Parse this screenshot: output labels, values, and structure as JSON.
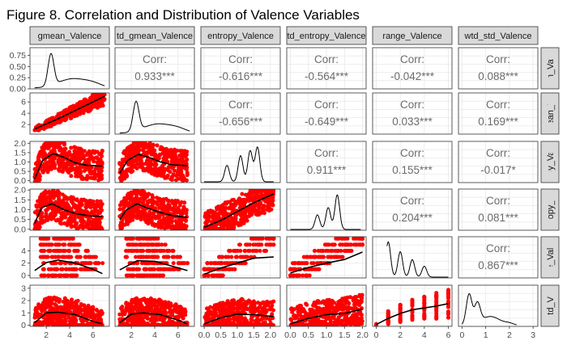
{
  "figure": {
    "title": "Figure 8. Correlation and Distribution of Valence Variables"
  },
  "chart_data": {
    "type": "scatter",
    "subtype": "pairs-matrix",
    "variables": [
      "gmean_Valence",
      "wtd_gmean_Valence",
      "entropy_Valence",
      "wtd_entropy_Valence",
      "range_Valence",
      "wtd_std_Valence"
    ],
    "column_strip_labels": [
      "gmean_Valence",
      "td_gmean_Valence",
      "entropy_Valence",
      "td_entropy_Valence",
      "range_Valence",
      "wtd_std_Valence"
    ],
    "row_strip_labels": [
      "an_Vale",
      "mean_Va",
      "opy_Vale",
      "ntropy_Va",
      "ge_Valer",
      "std_Va"
    ],
    "x_ticks": [
      [
        "2",
        "4",
        "6"
      ],
      [
        "2",
        "4",
        "6"
      ],
      [
        "0.0",
        "0.5",
        "1.0",
        "1.5",
        "2.0"
      ],
      [
        "0.0",
        "0.5",
        "1.0",
        "1.5",
        "2.0"
      ],
      [
        "0",
        "2",
        "4",
        "6"
      ],
      [
        "0",
        "1",
        "2",
        "3"
      ]
    ],
    "y_ticks": [
      [
        "0.00",
        "0.25",
        "0.50",
        "0.75"
      ],
      [
        "2",
        "4",
        "6"
      ],
      [
        "0.0",
        "0.5",
        "1.0",
        "1.5",
        "2.0"
      ],
      [
        "0.0",
        "0.5",
        "1.0",
        "1.5",
        "2.0"
      ],
      [
        "0",
        "2",
        "4"
      ],
      [
        "0",
        "1",
        "2",
        "3"
      ]
    ],
    "x_ranges": [
      [
        0.6,
        7.4
      ],
      [
        0.6,
        7.4
      ],
      [
        -0.1,
        2.3
      ],
      [
        -0.1,
        2.1
      ],
      [
        -0.3,
        6.3
      ],
      [
        -0.15,
        3.2
      ]
    ],
    "y_ranges": [
      [
        0,
        0.92
      ],
      [
        0.3,
        7.6
      ],
      [
        -0.1,
        2.1
      ],
      [
        -0.05,
        2.05
      ],
      [
        -0.4,
        6.3
      ],
      [
        -0.1,
        3.25
      ]
    ],
    "diagonal_density_peaks": [
      {
        "variable": "gmean_Valence",
        "peaks": [
          {
            "x": 2.4,
            "density": 0.87
          }
        ]
      },
      {
        "variable": "wtd_gmean_Valence",
        "peaks": [
          {
            "x": 2.4,
            "density": 0.8
          }
        ]
      },
      {
        "variable": "entropy_Valence",
        "peaks": [
          {
            "x": 0.69,
            "density": 0.45
          },
          {
            "x": 1.1,
            "density": 0.72
          },
          {
            "x": 1.39,
            "density": 0.85
          },
          {
            "x": 1.61,
            "density": 0.95
          }
        ]
      },
      {
        "variable": "wtd_entropy_Valence",
        "peaks": [
          {
            "x": 0.75,
            "density": 0.4
          },
          {
            "x": 1.05,
            "density": 0.6
          },
          {
            "x": 1.3,
            "density": 0.95
          }
        ]
      },
      {
        "variable": "range_Valence",
        "peaks": [
          {
            "x": 1,
            "density": 0.97
          },
          {
            "x": 2,
            "density": 0.7
          },
          {
            "x": 3,
            "density": 0.48
          },
          {
            "x": 4,
            "density": 0.3
          }
        ]
      },
      {
        "variable": "wtd_std_Valence",
        "peaks": [
          {
            "x": 0.3,
            "density": 0.85
          },
          {
            "x": 0.65,
            "density": 0.55
          }
        ]
      }
    ],
    "correlations": [
      {
        "row": 1,
        "col": 2,
        "label": "Corr:",
        "value": "0.933***"
      },
      {
        "row": 1,
        "col": 3,
        "label": "Corr:",
        "value": "-0.616***"
      },
      {
        "row": 1,
        "col": 4,
        "label": "Corr:",
        "value": "-0.564***"
      },
      {
        "row": 1,
        "col": 5,
        "label": "Corr:",
        "value": "-0.042***"
      },
      {
        "row": 1,
        "col": 6,
        "label": "Corr:",
        "value": "0.088***"
      },
      {
        "row": 2,
        "col": 3,
        "label": "Corr:",
        "value": "-0.656***"
      },
      {
        "row": 2,
        "col": 4,
        "label": "Corr:",
        "value": "-0.649***"
      },
      {
        "row": 2,
        "col": 5,
        "label": "Corr:",
        "value": "0.033***"
      },
      {
        "row": 2,
        "col": 6,
        "label": "Corr:",
        "value": "0.169***"
      },
      {
        "row": 3,
        "col": 4,
        "label": "Corr:",
        "value": "0.911***"
      },
      {
        "row": 3,
        "col": 5,
        "label": "Corr:",
        "value": "0.155***"
      },
      {
        "row": 3,
        "col": 6,
        "label": "Corr:",
        "value": "-0.017*"
      },
      {
        "row": 4,
        "col": 5,
        "label": "Corr:",
        "value": "0.204***"
      },
      {
        "row": 4,
        "col": 6,
        "label": "Corr:",
        "value": "0.081***"
      },
      {
        "row": 5,
        "col": 6,
        "label": "Corr:",
        "value": "0.867***"
      }
    ],
    "scatter_trends": {
      "row2_col1": [
        [
          1.0,
          1.2
        ],
        [
          3,
          3.0
        ],
        [
          5,
          5.0
        ],
        [
          7,
          7.0
        ]
      ],
      "row3_col1": [
        [
          1.0,
          0.1
        ],
        [
          1.7,
          1.1
        ],
        [
          2.6,
          1.45
        ],
        [
          3.5,
          1.25
        ],
        [
          4.5,
          0.95
        ],
        [
          5.5,
          0.82
        ],
        [
          6.8,
          0.78
        ]
      ],
      "row3_col2": [
        [
          1.0,
          0.4
        ],
        [
          1.7,
          1.1
        ],
        [
          2.6,
          1.4
        ],
        [
          3.5,
          1.25
        ],
        [
          4.5,
          1.0
        ],
        [
          5.5,
          0.85
        ],
        [
          6.8,
          0.8
        ]
      ],
      "row4_col1": [
        [
          1.0,
          0.3
        ],
        [
          1.6,
          1.1
        ],
        [
          2.5,
          1.3
        ],
        [
          3.5,
          1.0
        ],
        [
          4.5,
          0.8
        ],
        [
          5.5,
          0.7
        ],
        [
          6.8,
          0.65
        ]
      ],
      "row4_col2": [
        [
          1.0,
          0.5
        ],
        [
          1.6,
          1.0
        ],
        [
          2.5,
          1.3
        ],
        [
          3.5,
          1.05
        ],
        [
          4.5,
          0.85
        ],
        [
          5.5,
          0.7
        ],
        [
          6.8,
          0.6
        ]
      ],
      "row4_col3": [
        [
          0.0,
          0.1
        ],
        [
          0.5,
          0.45
        ],
        [
          1.0,
          0.9
        ],
        [
          1.5,
          1.35
        ],
        [
          2.1,
          1.8
        ]
      ],
      "row5_col1": [
        [
          1.0,
          0.8
        ],
        [
          2.0,
          2.1
        ],
        [
          3.0,
          2.5
        ],
        [
          4.5,
          2.0
        ],
        [
          6.0,
          1.0
        ],
        [
          6.8,
          0.3
        ]
      ],
      "row5_col2": [
        [
          1.0,
          0.9
        ],
        [
          2.5,
          2.4
        ],
        [
          4.0,
          2.3
        ],
        [
          5.5,
          1.5
        ],
        [
          6.8,
          0.8
        ]
      ],
      "row5_col3": [
        [
          0.0,
          0.2
        ],
        [
          0.5,
          1.2
        ],
        [
          1.0,
          2.0
        ],
        [
          1.5,
          2.8
        ],
        [
          2.1,
          3.0
        ]
      ],
      "row5_col4": [
        [
          0.0,
          0.4
        ],
        [
          0.5,
          1.3
        ],
        [
          1.0,
          2.0
        ],
        [
          1.5,
          2.6
        ],
        [
          2.0,
          3.8
        ]
      ],
      "row6_col1": [
        [
          1.0,
          0.2
        ],
        [
          2.0,
          1.0
        ],
        [
          3.0,
          1.05
        ],
        [
          4.5,
          0.85
        ],
        [
          6.0,
          0.3
        ],
        [
          6.8,
          0.1
        ]
      ],
      "row6_col2": [
        [
          1.0,
          0.2
        ],
        [
          2.0,
          0.9
        ],
        [
          3.0,
          1.0
        ],
        [
          4.5,
          0.85
        ],
        [
          6.0,
          0.4
        ],
        [
          6.8,
          0.1
        ]
      ],
      "row6_col3": [
        [
          0.0,
          0.1
        ],
        [
          0.5,
          0.6
        ],
        [
          1.0,
          0.9
        ],
        [
          1.5,
          0.85
        ],
        [
          2.1,
          0.7
        ]
      ],
      "row6_col4": [
        [
          0.0,
          0.1
        ],
        [
          0.5,
          0.55
        ],
        [
          1.0,
          0.85
        ],
        [
          1.5,
          0.95
        ],
        [
          2.0,
          1.3
        ]
      ],
      "row6_col5": [
        [
          0,
          0.05
        ],
        [
          1,
          0.55
        ],
        [
          2,
          0.95
        ],
        [
          3,
          1.25
        ],
        [
          4,
          1.4
        ],
        [
          5,
          1.55
        ],
        [
          6,
          1.75
        ]
      ]
    },
    "colors": {
      "points": "#ff0000",
      "smooth": "#000000",
      "strip_fill": "#d9d9d9",
      "grid": "#ebebeb",
      "panel_border": "#333333"
    },
    "grid": true,
    "legend": "none"
  }
}
